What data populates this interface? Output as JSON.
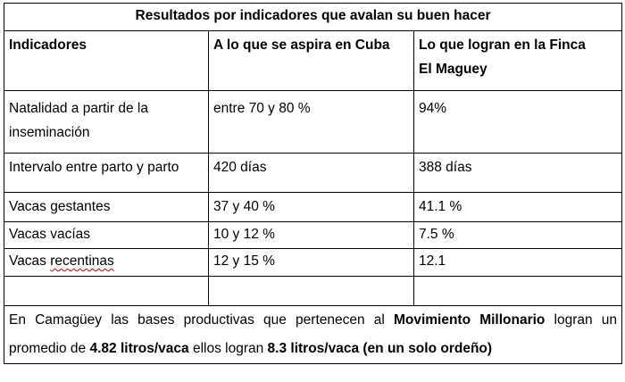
{
  "title": "Resultados por indicadores que avalan su buen hacer",
  "headers": {
    "col1": "Indicadores",
    "col2": "A lo que se aspira en Cuba",
    "col3_line1": "Lo que logran en la Finca",
    "col3_line2": "El Maguey"
  },
  "rows": [
    {
      "indicator_line1": "Natalidad a partir de la",
      "indicator_line2": "inseminación",
      "cuba": "entre 70 y 80 %",
      "finca": "94%"
    },
    {
      "indicator": "Intervalo entre parto y parto",
      "cuba": "420 días",
      "finca": "388 días"
    },
    {
      "indicator": "Vacas gestantes",
      "cuba": "37 y 40 %",
      "finca": "41.1 %"
    },
    {
      "indicator": "Vacas vacías",
      "cuba": "10 y 12 %",
      "finca": "7.5 %"
    },
    {
      "indicator_a": "Vacas ",
      "indicator_b": "recentinas",
      "cuba": "12 y 15 %",
      "finca": "12.1"
    }
  ],
  "footer": {
    "part1": "En Camagüey las bases productivas que pertenecen al ",
    "bold1": "Movimiento Millonario",
    "part2": " logran un promedio de ",
    "bold2": "4.82 litros/vaca",
    "part3": " ellos logran ",
    "bold3": "8.3 litros/vaca (en un solo ordeño)"
  }
}
